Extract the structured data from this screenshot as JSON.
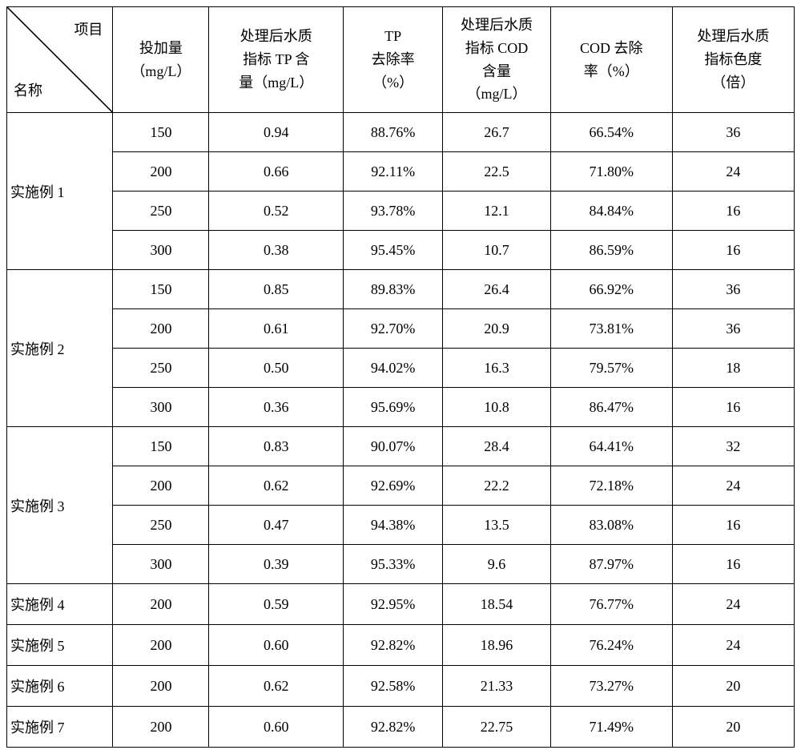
{
  "table": {
    "header": {
      "diagonal_top": "项目",
      "diagonal_bottom": "名称",
      "columns": [
        "投加量（mg/L）",
        "处理后水质指标 TP 含量（mg/L）",
        "TP<br>去除率（%）",
        "处理后水质指标 COD含量（mg/L）",
        "COD 去除率（%）",
        "处理后水质指标色度（倍）"
      ]
    },
    "groups": [
      {
        "name": "实施例 1",
        "rows": [
          {
            "dose": "150",
            "tp": "0.94",
            "tprate": "88.76%",
            "cod": "26.7",
            "codrate": "66.54%",
            "color": "36"
          },
          {
            "dose": "200",
            "tp": "0.66",
            "tprate": "92.11%",
            "cod": "22.5",
            "codrate": "71.80%",
            "color": "24"
          },
          {
            "dose": "250",
            "tp": "0.52",
            "tprate": "93.78%",
            "cod": "12.1",
            "codrate": "84.84%",
            "color": "16"
          },
          {
            "dose": "300",
            "tp": "0.38",
            "tprate": "95.45%",
            "cod": "10.7",
            "codrate": "86.59%",
            "color": "16"
          }
        ]
      },
      {
        "name": "实施例 2",
        "rows": [
          {
            "dose": "150",
            "tp": "0.85",
            "tprate": "89.83%",
            "cod": "26.4",
            "codrate": "66.92%",
            "color": "36"
          },
          {
            "dose": "200",
            "tp": "0.61",
            "tprate": "92.70%",
            "cod": "20.9",
            "codrate": "73.81%",
            "color": "36"
          },
          {
            "dose": "250",
            "tp": "0.50",
            "tprate": "94.02%",
            "cod": "16.3",
            "codrate": "79.57%",
            "color": "18"
          },
          {
            "dose": "300",
            "tp": "0.36",
            "tprate": "95.69%",
            "cod": "10.8",
            "codrate": "86.47%",
            "color": "16"
          }
        ]
      },
      {
        "name": "实施例 3",
        "rows": [
          {
            "dose": "150",
            "tp": "0.83",
            "tprate": "90.07%",
            "cod": "28.4",
            "codrate": "64.41%",
            "color": "32"
          },
          {
            "dose": "200",
            "tp": "0.62",
            "tprate": "92.69%",
            "cod": "22.2",
            "codrate": "72.18%",
            "color": "24"
          },
          {
            "dose": "250",
            "tp": "0.47",
            "tprate": "94.38%",
            "cod": "13.5",
            "codrate": "83.08%",
            "color": "16"
          },
          {
            "dose": "300",
            "tp": "0.39",
            "tprate": "95.33%",
            "cod": "9.6",
            "codrate": "87.97%",
            "color": "16"
          }
        ]
      },
      {
        "name": "实施例 4",
        "rows": [
          {
            "dose": "200",
            "tp": "0.59",
            "tprate": "92.95%",
            "cod": "18.54",
            "codrate": "76.77%",
            "color": "24"
          }
        ]
      },
      {
        "name": "实施例 5",
        "rows": [
          {
            "dose": "200",
            "tp": "0.60",
            "tprate": "92.82%",
            "cod": "18.96",
            "codrate": "76.24%",
            "color": "24"
          }
        ]
      },
      {
        "name": "实施例 6",
        "rows": [
          {
            "dose": "200",
            "tp": "0.62",
            "tprate": "92.58%",
            "cod": "21.33",
            "codrate": "73.27%",
            "color": "20"
          }
        ]
      },
      {
        "name": "实施例 7",
        "rows": [
          {
            "dose": "200",
            "tp": "0.60",
            "tprate": "92.82%",
            "cod": "22.75",
            "codrate": "71.49%",
            "color": "20"
          }
        ]
      }
    ],
    "styling": {
      "border_color": "#000000",
      "border_width": 1.5,
      "background_color": "#ffffff",
      "font_family": "SimSun",
      "header_fontsize": 18,
      "cell_fontsize": 18,
      "text_color": "#000000"
    }
  }
}
